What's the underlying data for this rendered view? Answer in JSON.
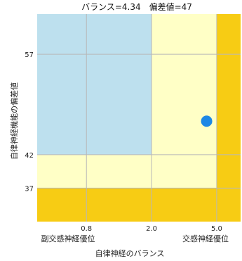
{
  "chart_data": {
    "type": "scatter",
    "title": "バランス=4.34　偏差値=47",
    "xlabel": "自律神経のバランス",
    "ylabel": "自律神経機能の偏差値",
    "x_scale": "log",
    "xlim": [
      0.4,
      7.0
    ],
    "ylim": [
      32,
      63
    ],
    "x_ticks": [
      {
        "value": 0.8,
        "label": "0.8"
      },
      {
        "value": 2.0,
        "label": "2.0"
      },
      {
        "value": 5.0,
        "label": "5.0"
      }
    ],
    "y_ticks": [
      {
        "value": 37,
        "label": "37"
      },
      {
        "value": 42,
        "label": "42"
      },
      {
        "value": 57,
        "label": "57"
      }
    ],
    "x_end_labels": {
      "left": "副交感神経優位",
      "right": "交感神経優位"
    },
    "grid": true,
    "point": {
      "x": 4.34,
      "y": 47
    },
    "zones": {
      "blue_top_left": {
        "x": [
          0.4,
          2.0
        ],
        "y": [
          42,
          63
        ]
      },
      "lightyellow_band": {
        "x_max": 5.0,
        "y_min": 37
      },
      "yellow_band": {
        "x_min": 5.0,
        "y_max": 37
      }
    },
    "colors": {
      "blue": "#bde0ee",
      "lightyellow": "#ffffc6",
      "yellow": "#f7cc14",
      "point": "#1e88e5",
      "grid": "#b8b8b8"
    }
  }
}
